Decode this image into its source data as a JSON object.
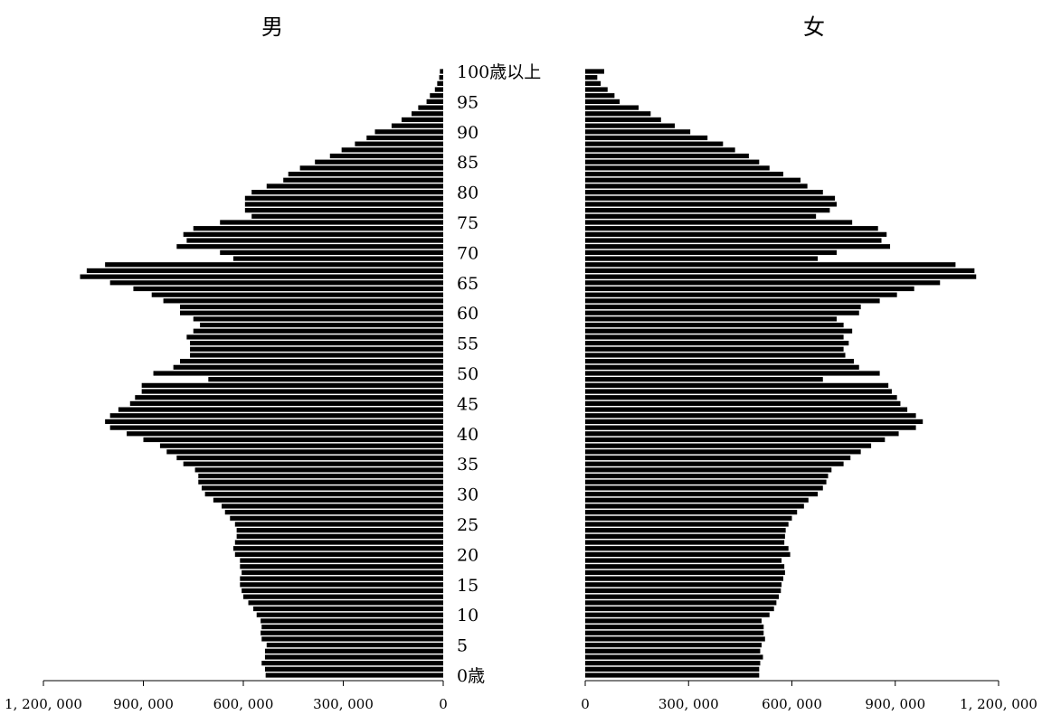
{
  "chart_data": {
    "type": "bar",
    "orientation": "horizontal-pyramid",
    "title_left": "男",
    "title_right": "女",
    "age_unit": "歳",
    "top_category_label": "100歳以上",
    "age_tick_labels": [
      "0歳",
      "5",
      "10",
      "15",
      "20",
      "25",
      "30",
      "35",
      "40",
      "45",
      "50",
      "55",
      "60",
      "65",
      "70",
      "75",
      "80",
      "85",
      "90",
      "95",
      "100歳以上"
    ],
    "x_tick_labels_male": [
      "1, 200, 000",
      "900, 000",
      "600, 000",
      "300, 000",
      "0"
    ],
    "x_tick_labels_female": [
      "0",
      "300, 000",
      "600, 000",
      "900, 000",
      "1, 200, 000"
    ],
    "xlim": [
      0,
      1200000
    ],
    "categories": [
      "0",
      "1",
      "2",
      "3",
      "4",
      "5",
      "6",
      "7",
      "8",
      "9",
      "10",
      "11",
      "12",
      "13",
      "14",
      "15",
      "16",
      "17",
      "18",
      "19",
      "20",
      "21",
      "22",
      "23",
      "24",
      "25",
      "26",
      "27",
      "28",
      "29",
      "30",
      "31",
      "32",
      "33",
      "34",
      "35",
      "36",
      "37",
      "38",
      "39",
      "40",
      "41",
      "42",
      "43",
      "44",
      "45",
      "46",
      "47",
      "48",
      "49",
      "50",
      "51",
      "52",
      "53",
      "54",
      "55",
      "56",
      "57",
      "58",
      "59",
      "60",
      "61",
      "62",
      "63",
      "64",
      "65",
      "66",
      "67",
      "68",
      "69",
      "70",
      "71",
      "72",
      "73",
      "74",
      "75",
      "76",
      "77",
      "78",
      "79",
      "80",
      "81",
      "82",
      "83",
      "84",
      "85",
      "86",
      "87",
      "88",
      "89",
      "90",
      "91",
      "92",
      "93",
      "94",
      "95",
      "96",
      "97",
      "98",
      "99",
      "100+"
    ],
    "series": [
      {
        "name": "男",
        "color": "#000000",
        "values": [
          533000,
          535000,
          545000,
          535000,
          535000,
          530000,
          545000,
          548000,
          545000,
          548000,
          560000,
          570000,
          585000,
          600000,
          605000,
          610000,
          610000,
          605000,
          610000,
          610000,
          625000,
          630000,
          625000,
          620000,
          620000,
          625000,
          640000,
          655000,
          665000,
          690000,
          715000,
          725000,
          735000,
          735000,
          745000,
          780000,
          800000,
          830000,
          850000,
          900000,
          950000,
          1000000,
          1015000,
          1000000,
          975000,
          940000,
          925000,
          905000,
          905000,
          705000,
          870000,
          810000,
          790000,
          760000,
          760000,
          760000,
          770000,
          750000,
          730000,
          750000,
          790000,
          790000,
          840000,
          875000,
          930000,
          1000000,
          1090000,
          1070000,
          1015000,
          630000,
          670000,
          800000,
          770000,
          780000,
          750000,
          670000,
          575000,
          595000,
          595000,
          595000,
          575000,
          530000,
          480000,
          465000,
          430000,
          385000,
          340000,
          305000,
          265000,
          230000,
          205000,
          155000,
          125000,
          95000,
          75000,
          50000,
          40000,
          25000,
          18000,
          12000,
          10000
        ]
      },
      {
        "name": "女",
        "color": "#000000",
        "values": [
          505000,
          505000,
          508000,
          516000,
          508000,
          512000,
          522000,
          518000,
          518000,
          512000,
          535000,
          548000,
          555000,
          562000,
          568000,
          570000,
          575000,
          580000,
          578000,
          570000,
          595000,
          590000,
          578000,
          580000,
          582000,
          590000,
          600000,
          615000,
          635000,
          648000,
          675000,
          690000,
          700000,
          705000,
          715000,
          750000,
          770000,
          800000,
          830000,
          870000,
          910000,
          960000,
          980000,
          960000,
          935000,
          915000,
          905000,
          890000,
          880000,
          690000,
          855000,
          795000,
          780000,
          755000,
          750000,
          765000,
          750000,
          775000,
          750000,
          730000,
          795000,
          800000,
          855000,
          905000,
          955000,
          1030000,
          1135000,
          1130000,
          1075000,
          675000,
          730000,
          885000,
          860000,
          875000,
          850000,
          775000,
          670000,
          710000,
          730000,
          725000,
          690000,
          645000,
          625000,
          575000,
          535000,
          505000,
          475000,
          435000,
          400000,
          355000,
          305000,
          260000,
          220000,
          190000,
          155000,
          100000,
          85000,
          65000,
          45000,
          35000,
          55000
        ]
      }
    ]
  }
}
